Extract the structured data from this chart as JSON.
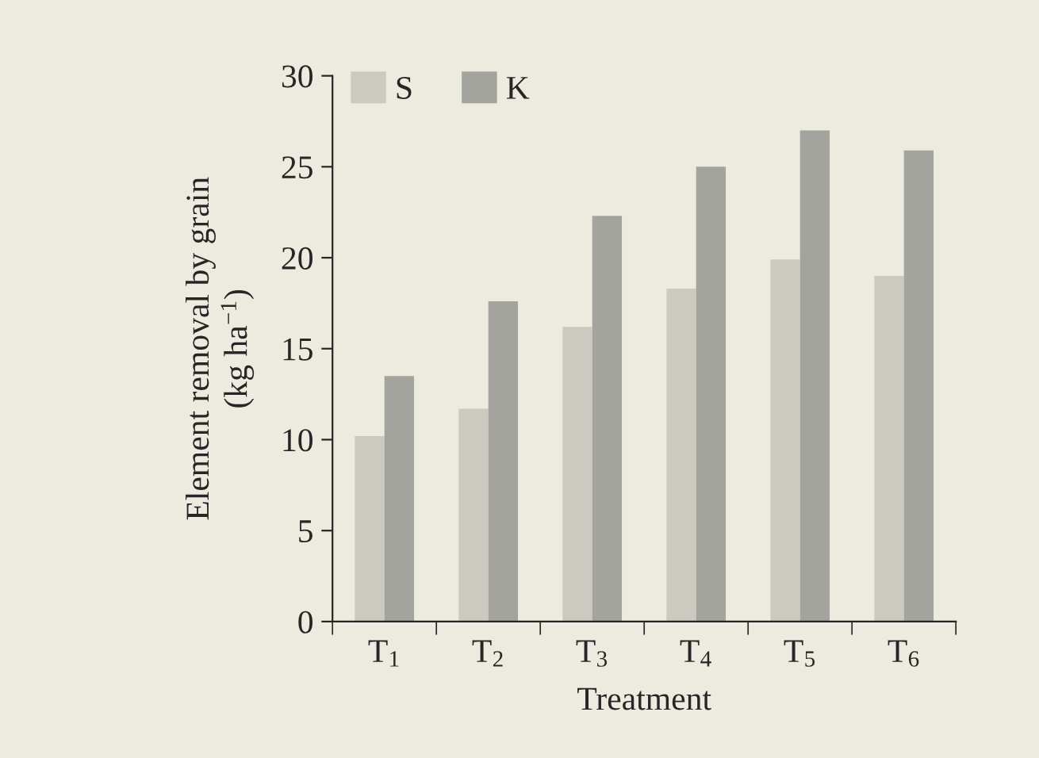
{
  "chart_data": {
    "type": "bar",
    "xlabel": "Treatment",
    "ylabel": "Element removal by grain\n(kg ha$^{−1}$)",
    "categories": [
      "T$_{1}$",
      "T$_{2}$",
      "T$_{3}$",
      "T$_{4}$",
      "T$_{5}$",
      "T$_{6}$"
    ],
    "series": [
      {
        "name": "S",
        "color": "#ccc9c1",
        "values": [
          10.2,
          11.7,
          16.2,
          18.3,
          19.9,
          19.0
        ]
      },
      {
        "name": "K",
        "color": "#a3a49e",
        "values": [
          13.5,
          17.6,
          22.3,
          25.0,
          27.0,
          25.9
        ]
      }
    ],
    "ylim": [
      0,
      30
    ],
    "yticks": [
      0,
      5,
      10,
      15,
      20,
      25,
      30
    ],
    "grid": false,
    "legend": "top left"
  }
}
